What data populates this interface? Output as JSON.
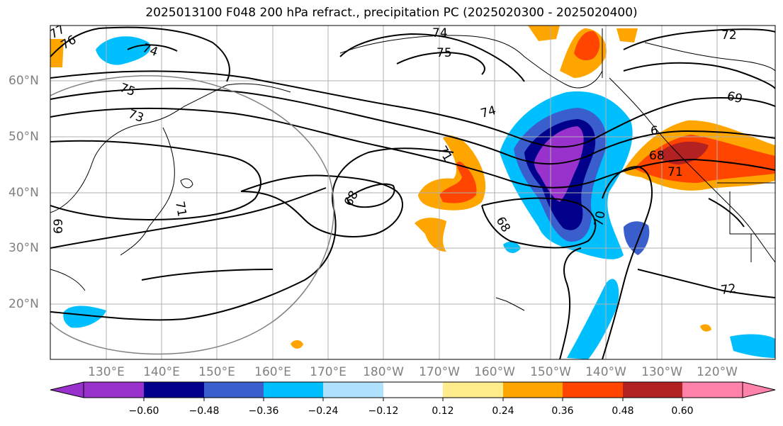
{
  "title": "2025013100 F048 200 hPa refract., precipitation PC (2025020300 - 2025020400)",
  "lat_labels": [
    "60°N",
    "50°N",
    "40°N",
    "30°N",
    "20°N"
  ],
  "lon_labels": [
    "130°E",
    "140°E",
    "150°E",
    "160°E",
    "170°E",
    "180°W",
    "170°W",
    "160°W",
    "150°W",
    "140°W",
    "130°W",
    "120°W"
  ],
  "contour_labels": [
    "77",
    "76",
    "74",
    "74",
    "75",
    "75",
    "73",
    "74",
    "71",
    "68",
    "68",
    "70",
    "68",
    "71",
    "69",
    "72",
    "72",
    "69",
    "71",
    "6"
  ],
  "colorbar": {
    "colors": [
      "#9932cc",
      "#00008b",
      "#3a5fcd",
      "#00bfff",
      "#b0e2ff",
      "#ffffff",
      "#ffec8b",
      "#ffa500",
      "#ff4500",
      "#b22222",
      "#ff82ab"
    ],
    "tick_labels": [
      "−0.60",
      "−0.48",
      "−0.36",
      "−0.24",
      "−0.12",
      "0.12",
      "0.24",
      "0.36",
      "0.48",
      "0.60"
    ]
  }
}
